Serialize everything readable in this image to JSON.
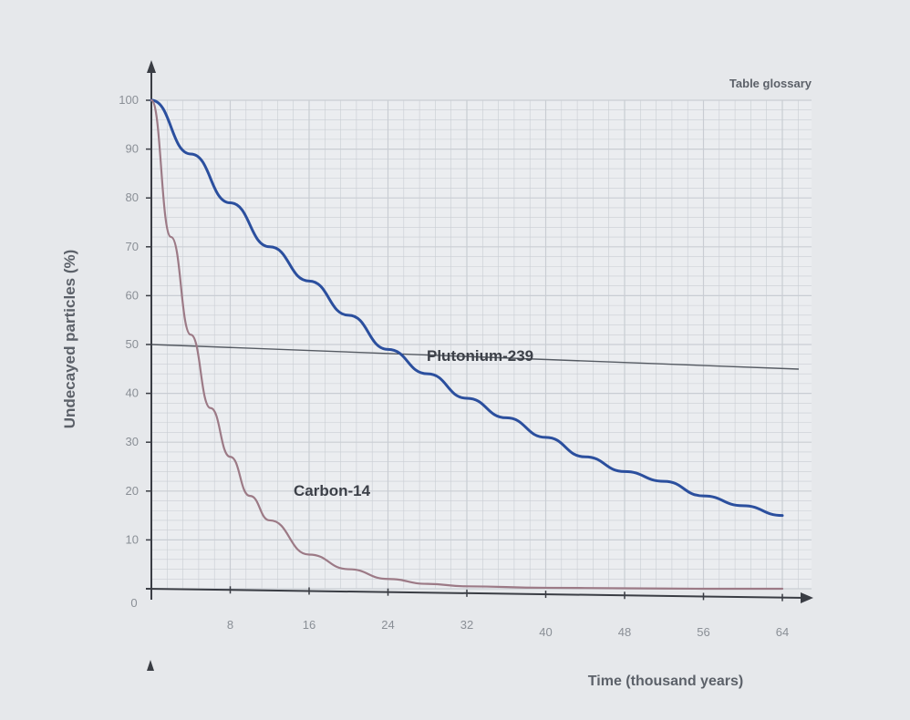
{
  "chart_data": {
    "type": "line",
    "header_text": "Table glossary",
    "xlabel": "Time (thousand years)",
    "ylabel": "Undecayed particles (%)",
    "x_ticks": [
      8,
      16,
      24,
      32,
      40,
      48,
      56,
      64
    ],
    "y_ticks": [
      10,
      20,
      30,
      40,
      50,
      60,
      70,
      80,
      90,
      100
    ],
    "origin_label": "0",
    "xlim": [
      0,
      64
    ],
    "ylim": [
      0,
      100
    ],
    "grid": true,
    "colors": {
      "plutonium": "#2b4f9e",
      "carbon": "#9c7a86",
      "grid": "#c9cdd3",
      "axis": "#3a3d44"
    },
    "series": [
      {
        "name": "Plutonium-239",
        "x": [
          0,
          4,
          8,
          12,
          16,
          20,
          24,
          28,
          32,
          36,
          40,
          44,
          48,
          52,
          56,
          60,
          64
        ],
        "y": [
          100,
          89,
          79,
          70,
          63,
          56,
          49,
          44,
          39,
          35,
          31,
          27,
          24,
          22,
          19,
          17,
          15
        ]
      },
      {
        "name": "Carbon-14",
        "x": [
          0,
          2,
          4,
          6,
          8,
          10,
          12,
          16,
          20,
          24,
          28,
          32,
          40,
          48,
          56,
          64
        ],
        "y": [
          100,
          72,
          52,
          37,
          27,
          19,
          14,
          7,
          4,
          2,
          1,
          0.5,
          0.2,
          0.1,
          0,
          0
        ]
      }
    ]
  }
}
